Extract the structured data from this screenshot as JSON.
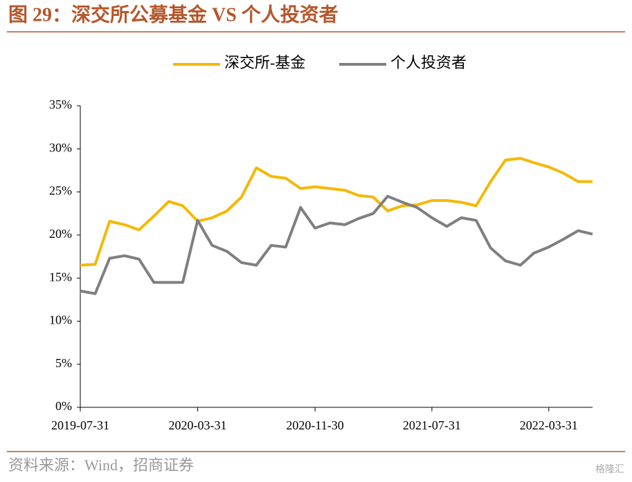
{
  "chart_data": {
    "type": "line",
    "title": "图 29：深交所公募基金 VS 个人投资者",
    "source": "资料来源：Wind，招商证券",
    "watermark": "格隆汇",
    "x": [
      "2019-07-31",
      "2019-08-31",
      "2019-09-30",
      "2019-10-31",
      "2019-11-30",
      "2019-12-31",
      "2020-01-31",
      "2020-02-29",
      "2020-03-31",
      "2020-04-30",
      "2020-05-31",
      "2020-06-30",
      "2020-07-31",
      "2020-08-31",
      "2020-09-30",
      "2020-10-31",
      "2020-11-30",
      "2020-12-31",
      "2021-01-31",
      "2021-02-28",
      "2021-03-31",
      "2021-04-30",
      "2021-05-31",
      "2021-06-30",
      "2021-07-31",
      "2021-08-31",
      "2021-09-30",
      "2021-10-31",
      "2021-11-30",
      "2021-12-31",
      "2022-01-31",
      "2022-02-28",
      "2022-03-31",
      "2022-04-30",
      "2022-05-31",
      "2022-06-30"
    ],
    "xlim": [
      "2019-07-31",
      "2022-06-30"
    ],
    "xticks": [
      "2019-07-31",
      "2020-03-31",
      "2020-11-30",
      "2021-07-31",
      "2022-03-31"
    ],
    "ylim": [
      0,
      35
    ],
    "yticks": [
      {
        "value": 0,
        "label": "0%"
      },
      {
        "value": 5,
        "label": "5%"
      },
      {
        "value": 10,
        "label": "10%"
      },
      {
        "value": 15,
        "label": "15%"
      },
      {
        "value": 20,
        "label": "20%"
      },
      {
        "value": 25,
        "label": "25%"
      },
      {
        "value": 30,
        "label": "30%"
      },
      {
        "value": 35,
        "label": "35%"
      }
    ],
    "legend": "top",
    "series": [
      {
        "name": "深交所-基金",
        "color": "#f5b800",
        "values": [
          16.5,
          16.6,
          21.6,
          21.2,
          20.6,
          22.2,
          23.9,
          23.4,
          21.6,
          22.0,
          22.8,
          24.4,
          27.8,
          26.8,
          26.6,
          25.4,
          25.6,
          25.4,
          25.2,
          24.6,
          24.4,
          22.8,
          23.4,
          23.5,
          24.0,
          24.0,
          23.8,
          23.4,
          26.2,
          28.7,
          28.9,
          28.4,
          27.9,
          27.2,
          26.2,
          26.2
        ]
      },
      {
        "name": "个人投资者",
        "color": "#7f7f7f",
        "values": [
          13.5,
          13.2,
          17.3,
          17.6,
          17.2,
          14.5,
          14.5,
          14.5,
          21.7,
          18.8,
          18.1,
          16.8,
          16.5,
          18.8,
          18.6,
          23.2,
          20.8,
          21.4,
          21.2,
          21.9,
          22.5,
          24.5,
          23.8,
          23.2,
          22.0,
          21.0,
          22.0,
          21.7,
          18.5,
          17.0,
          16.5,
          17.9,
          18.6,
          19.5,
          20.5,
          20.1
        ]
      }
    ]
  }
}
